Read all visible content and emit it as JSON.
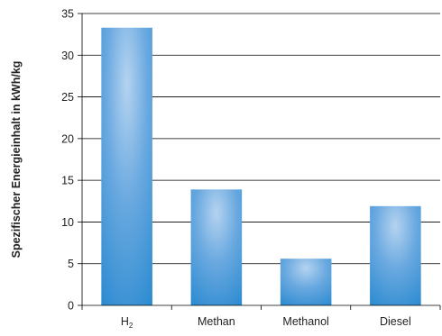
{
  "chart_data": {
    "type": "bar",
    "title": "",
    "xlabel": "",
    "ylabel": "Spezifischer Energieinhalt in kWh/kg",
    "categories": [
      {
        "main": "H",
        "sub": "2"
      },
      {
        "main": "Methan",
        "sub": ""
      },
      {
        "main": "Methanol",
        "sub": ""
      },
      {
        "main": "Diesel",
        "sub": ""
      }
    ],
    "values": [
      33.3,
      13.9,
      5.6,
      11.9
    ],
    "ylim": [
      0,
      35
    ],
    "yticks": [
      0,
      5,
      10,
      15,
      20,
      25,
      30,
      35
    ],
    "grid": true,
    "legend": "none",
    "colors": {
      "bar_light": "#b5d3f0",
      "bar_mid": "#6aa9e0",
      "bar_dark": "#2a8ad0",
      "grid": "#000000",
      "axis": "#000000"
    }
  }
}
